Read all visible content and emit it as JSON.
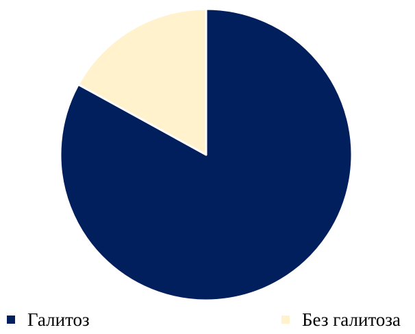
{
  "chart_data": {
    "type": "pie",
    "title": "",
    "categories": [
      "Галитоз",
      "Без галитоза"
    ],
    "values": [
      83,
      17
    ],
    "colors": [
      "#001f5c",
      "#fff2cc"
    ],
    "legend": "bottom",
    "start": "12 o'clock, clockwise"
  }
}
